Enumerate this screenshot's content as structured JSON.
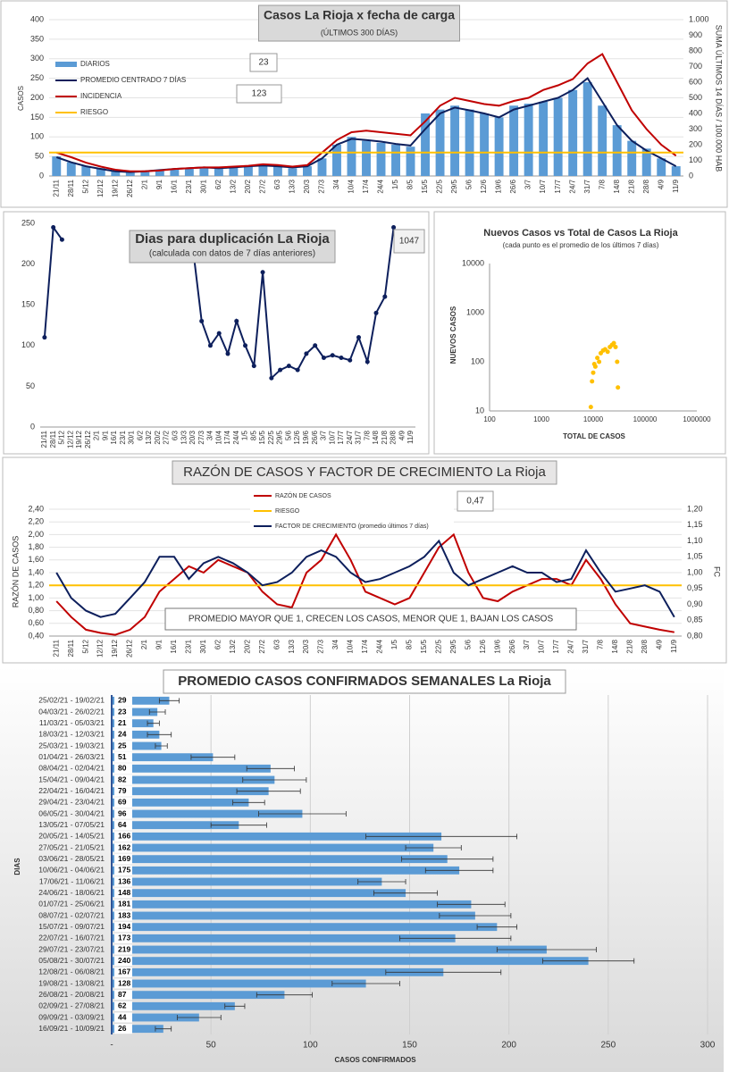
{
  "chart_data": [
    {
      "type": "combo",
      "title": "Casos La Rioja x fecha de carga",
      "subtitle": "(ÚLTIMOS 300 DÍAS)",
      "ylabel": "CASOS",
      "y2label": "SUMA ÚLTIMOS 14 DÍAS / 100.000 HAB",
      "annotations": [
        "23",
        "123"
      ],
      "grid": true,
      "categories": [
        "21/11",
        "28/11",
        "5/12",
        "12/12",
        "19/12",
        "26/12",
        "2/1",
        "9/1",
        "16/1",
        "23/1",
        "30/1",
        "6/2",
        "13/2",
        "20/2",
        "27/2",
        "6/3",
        "13/3",
        "20/3",
        "27/3",
        "3/4",
        "10/4",
        "17/4",
        "24/4",
        "1/5",
        "8/5",
        "15/5",
        "22/5",
        "29/5",
        "5/6",
        "12/6",
        "19/6",
        "26/6",
        "3/7",
        "10/7",
        "17/7",
        "24/7",
        "31/7",
        "7/8",
        "14/8",
        "21/8",
        "28/8",
        "4/9",
        "11/9"
      ],
      "ylim": [
        0,
        400
      ],
      "yticks": [
        0,
        50,
        100,
        150,
        200,
        250,
        300,
        350,
        400
      ],
      "y2lim": [
        0,
        1000
      ],
      "y2ticks": [
        0,
        100,
        200,
        300,
        400,
        500,
        600,
        700,
        800,
        900,
        {
          "value": 1000,
          "label": "1.000"
        }
      ],
      "series": [
        {
          "name": "DIARIOS",
          "type": "bar",
          "color": "#5b9bd5",
          "values": [
            50,
            35,
            25,
            20,
            12,
            10,
            12,
            15,
            18,
            20,
            22,
            20,
            22,
            25,
            28,
            25,
            20,
            25,
            45,
            80,
            100,
            90,
            85,
            80,
            75,
            160,
            170,
            180,
            170,
            160,
            150,
            180,
            185,
            190,
            200,
            220,
            240,
            180,
            130,
            90,
            70,
            45,
            25
          ]
        },
        {
          "name": "PROMEDIO CENTRADO 7 DÍAS",
          "type": "line",
          "color": "#0d1f5c",
          "values": [
            48,
            35,
            25,
            18,
            12,
            10,
            12,
            15,
            18,
            20,
            22,
            20,
            22,
            25,
            27,
            25,
            22,
            25,
            45,
            80,
            95,
            92,
            88,
            82,
            78,
            120,
            160,
            175,
            168,
            160,
            150,
            170,
            180,
            190,
            200,
            220,
            250,
            190,
            130,
            90,
            65,
            45,
            25
          ]
        },
        {
          "name": "INCIDENCIA",
          "type": "line",
          "color": "#c00000",
          "axis": "y2",
          "values": [
            150,
            120,
            85,
            60,
            40,
            30,
            30,
            35,
            45,
            50,
            55,
            55,
            60,
            65,
            75,
            70,
            60,
            70,
            150,
            230,
            280,
            290,
            280,
            270,
            260,
            350,
            450,
            500,
            480,
            460,
            450,
            480,
            500,
            550,
            580,
            620,
            720,
            780,
            600,
            420,
            300,
            200,
            130
          ]
        },
        {
          "name": "RIESGO",
          "type": "line",
          "color": "#ffc000",
          "axis": "y2",
          "value": 150
        }
      ]
    },
    {
      "type": "line",
      "title": "Dias para duplicación La Rioja",
      "subtitle": "(calculada con datos de 7 días anteriores)",
      "annotations": [
        "1047"
      ],
      "color": "#0d1f5c",
      "categories": [
        "21/11",
        "28/11",
        "5/12",
        "12/12",
        "19/12",
        "26/12",
        "2/1",
        "9/1",
        "16/1",
        "23/1",
        "30/1",
        "6/2",
        "13/2",
        "20/2",
        "27/2",
        "6/3",
        "13/3",
        "20/3",
        "27/3",
        "3/4",
        "10/4",
        "17/4",
        "24/4",
        "1/5",
        "8/5",
        "15/5",
        "22/5",
        "29/5",
        "5/6",
        "12/6",
        "19/6",
        "26/6",
        "3/7",
        "10/7",
        "17/7",
        "24/7",
        "31/7",
        "7/8",
        "14/8",
        "21/8",
        "28/8",
        "4/9",
        "11/9"
      ],
      "ylim": [
        0,
        250
      ],
      "yticks": [
        0,
        50,
        100,
        150,
        200,
        250
      ],
      "values": [
        110,
        245,
        230,
        null,
        null,
        null,
        null,
        null,
        null,
        null,
        null,
        null,
        null,
        null,
        null,
        null,
        null,
        220,
        130,
        100,
        115,
        90,
        130,
        100,
        75,
        190,
        60,
        70,
        75,
        70,
        90,
        100,
        85,
        88,
        85,
        82,
        110,
        80,
        140,
        160,
        245,
        null,
        null
      ]
    },
    {
      "type": "scatter",
      "title": "Nuevos Casos vs Total de Casos La Rioja",
      "subtitle": "(cada punto es el promedio de los últimos 7 días)",
      "xlabel": "TOTAL DE CASOS",
      "ylabel": "NUEVOS CASOS",
      "color": "#ffc000",
      "log": true,
      "xlim": [
        100,
        1000000
      ],
      "xticks": [
        100,
        1000,
        10000,
        100000,
        1000000
      ],
      "ylim": [
        10,
        10000
      ],
      "yticks": [
        10,
        100,
        1000,
        10000
      ],
      "x": [
        9000,
        9500,
        10000,
        10500,
        11000,
        12000,
        13000,
        14000,
        15500,
        17000,
        19000,
        21000,
        23000,
        25000,
        27000,
        29000,
        30000
      ],
      "y": [
        12,
        40,
        60,
        90,
        80,
        120,
        100,
        150,
        170,
        180,
        160,
        200,
        220,
        240,
        200,
        100,
        30
      ]
    },
    {
      "type": "line",
      "title": "RAZÓN DE CASOS Y FACTOR DE CRECIMIENTO La Rioja",
      "annotations": [
        "0,47",
        "PROMEDIO MAYOR QUE 1, CRECEN LOS CASOS, MENOR QUE 1, BAJAN LOS CASOS"
      ],
      "ylabel": "RAZÓN DE CASOS",
      "y2label": "FC",
      "categories": [
        "21/11",
        "28/11",
        "5/12",
        "12/12",
        "19/12",
        "26/12",
        "2/1",
        "9/1",
        "16/1",
        "23/1",
        "30/1",
        "6/2",
        "13/2",
        "20/2",
        "27/2",
        "6/3",
        "13/3",
        "20/3",
        "27/3",
        "3/4",
        "10/4",
        "17/4",
        "24/4",
        "1/5",
        "8/5",
        "15/5",
        "22/5",
        "29/5",
        "5/6",
        "12/6",
        "19/6",
        "26/6",
        "3/7",
        "10/7",
        "17/7",
        "24/7",
        "31/7",
        "7/8",
        "14/8",
        "21/8",
        "28/8",
        "4/9",
        "11/9"
      ],
      "ylim": [
        0.4,
        2.4
      ],
      "yticks": [
        {
          "value": 0.4,
          "label": "0,40"
        },
        {
          "value": 0.6,
          "label": "0,60"
        },
        {
          "value": 0.8,
          "label": "0,80"
        },
        {
          "value": 1.0,
          "label": "1,00"
        },
        {
          "value": 1.2,
          "label": "1,20"
        },
        {
          "value": 1.4,
          "label": "1,40"
        },
        {
          "value": 1.6,
          "label": "1,60"
        },
        {
          "value": 1.8,
          "label": "1,80"
        },
        {
          "value": 2.0,
          "label": "2,00"
        },
        {
          "value": 2.2,
          "label": "2,20"
        },
        {
          "value": 2.4,
          "label": "2,40"
        }
      ],
      "y2lim": [
        0.8,
        1.2
      ],
      "y2ticks": [
        {
          "value": 0.8,
          "label": "0,80"
        },
        {
          "value": 0.85,
          "label": "0,85"
        },
        {
          "value": 0.9,
          "label": "0,90"
        },
        {
          "value": 0.95,
          "label": "0,95"
        },
        {
          "value": 1.0,
          "label": "1,00"
        },
        {
          "value": 1.05,
          "label": "1,05"
        },
        {
          "value": 1.1,
          "label": "1,10"
        },
        {
          "value": 1.15,
          "label": "1,15"
        },
        {
          "value": 1.2,
          "label": "1,20"
        }
      ],
      "series": [
        {
          "name": "RAZÓN DE CASOS",
          "color": "#c00000",
          "values": [
            0.95,
            0.7,
            0.5,
            0.45,
            0.42,
            0.5,
            0.7,
            1.1,
            1.3,
            1.5,
            1.4,
            1.6,
            1.5,
            1.4,
            1.1,
            0.9,
            0.85,
            1.4,
            1.6,
            2.0,
            1.6,
            1.1,
            1.0,
            0.9,
            1.0,
            1.4,
            1.8,
            2.0,
            1.4,
            1.0,
            0.95,
            1.1,
            1.2,
            1.3,
            1.3,
            1.2,
            1.6,
            1.3,
            0.9,
            0.6,
            0.55,
            0.5,
            0.46
          ]
        },
        {
          "name": "RIESGO",
          "color": "#ffc000",
          "value": 1.2
        },
        {
          "name": "FACTOR DE CRECIMIENTO (promedio últimos 7 días)",
          "color": "#0d1f5c",
          "axis": "y2",
          "values": [
            1.0,
            0.92,
            0.88,
            0.86,
            0.87,
            0.92,
            0.97,
            1.05,
            1.05,
            0.98,
            1.03,
            1.05,
            1.03,
            1.0,
            0.96,
            0.97,
            1.0,
            1.05,
            1.07,
            1.05,
            1.0,
            0.97,
            0.98,
            1.0,
            1.02,
            1.05,
            1.1,
            1.0,
            0.96,
            0.98,
            1.0,
            1.02,
            1.0,
            1.0,
            0.97,
            0.98,
            1.07,
            1.0,
            0.94,
            0.95,
            0.96,
            0.94,
            0.86
          ]
        }
      ]
    },
    {
      "type": "hbar",
      "title": "PROMEDIO CASOS CONFIRMADOS SEMANALES La Rioja",
      "xlabel": "CASOS CONFIRMADOS",
      "ylabel": "DIAS",
      "color": "#5b9bd5",
      "xlim": [
        0,
        300
      ],
      "xticks": [
        {
          "value": 0,
          "label": "-"
        },
        50,
        100,
        150,
        200,
        250,
        300
      ],
      "grid": true,
      "categories": [
        "25/02/21 - 19/02/21",
        "04/03/21 - 26/02/21",
        "11/03/21 - 05/03/21",
        "18/03/21 - 12/03/21",
        "25/03/21 - 19/03/21",
        "01/04/21 - 26/03/21",
        "08/04/21 - 02/04/21",
        "15/04/21 - 09/04/21",
        "22/04/21 - 16/04/21",
        "29/04/21 - 23/04/21",
        "06/05/21 - 30/04/21",
        "13/05/21 - 07/05/21",
        "20/05/21 - 14/05/21",
        "27/05/21 - 21/05/21",
        "03/06/21 - 28/05/21",
        "10/06/21 - 04/06/21",
        "17/06/21 - 11/06/21",
        "24/06/21 - 18/06/21",
        "01/07/21 - 25/06/21",
        "08/07/21 - 02/07/21",
        "15/07/21 - 09/07/21",
        "22/07/21 - 16/07/21",
        "29/07/21 - 23/07/21",
        "05/08/21 - 30/07/21",
        "12/08/21 - 06/08/21",
        "19/08/21 - 13/08/21",
        "26/08/21 - 20/08/21",
        "02/09/21 - 27/08/21",
        "09/09/21 - 03/09/21",
        "16/09/21 - 10/09/21"
      ],
      "values": [
        29,
        23,
        21,
        24,
        25,
        51,
        80,
        82,
        79,
        69,
        96,
        64,
        166,
        162,
        169,
        175,
        136,
        148,
        181,
        183,
        194,
        173,
        219,
        240,
        167,
        128,
        87,
        62,
        44,
        26
      ],
      "errors": [
        5,
        4,
        3,
        6,
        3,
        11,
        12,
        16,
        16,
        8,
        22,
        14,
        38,
        14,
        23,
        17,
        12,
        16,
        17,
        18,
        10,
        28,
        25,
        23,
        29,
        17,
        14,
        5,
        11,
        4
      ]
    }
  ]
}
